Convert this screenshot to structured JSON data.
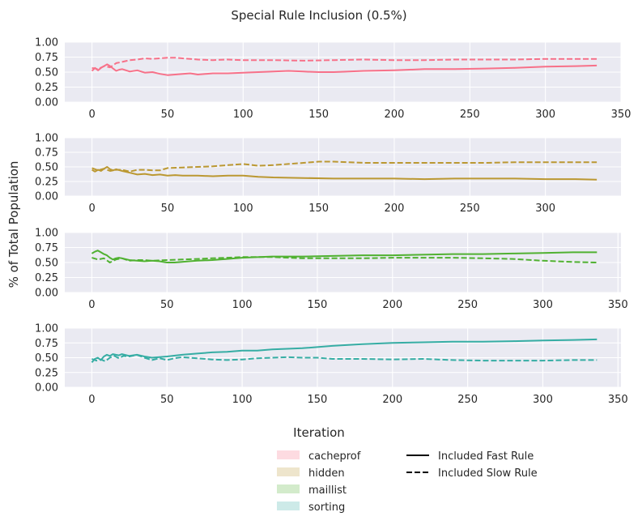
{
  "figure": {
    "title": "Special Rule Inclusion (0.5%)",
    "ylabel": "% of Total Population",
    "xlabel": "Iteration"
  },
  "legend": {
    "benchmarks": [
      {
        "label": "cacheprof",
        "color": "#f77189"
      },
      {
        "label": "hidden",
        "color": "#bb9832"
      },
      {
        "label": "maillist",
        "color": "#50b131"
      },
      {
        "label": "sorting",
        "color": "#36ada4"
      }
    ],
    "styles": [
      {
        "label": "Included Fast Rule",
        "dash": "solid"
      },
      {
        "label": "Included Slow Rule",
        "dash": "dashed"
      }
    ]
  },
  "chart_data": [
    {
      "type": "line",
      "name": "cacheprof",
      "color": "#f77189",
      "xlim": [
        -18,
        350
      ],
      "ylim": [
        0,
        1
      ],
      "xticks": [
        0,
        50,
        100,
        150,
        200,
        250,
        300,
        350
      ],
      "yticks": [
        0.0,
        0.25,
        0.5,
        0.75,
        1.0
      ],
      "grid": true,
      "series": [
        {
          "name": "Included Fast Rule",
          "dash": "solid",
          "x": [
            0,
            2,
            4,
            6,
            8,
            10,
            12,
            14,
            16,
            18,
            20,
            25,
            30,
            35,
            40,
            45,
            50,
            55,
            60,
            65,
            70,
            80,
            90,
            100,
            110,
            120,
            130,
            140,
            150,
            160,
            170,
            180,
            200,
            220,
            240,
            260,
            280,
            300,
            320,
            334
          ],
          "y": [
            0.52,
            0.57,
            0.53,
            0.57,
            0.6,
            0.63,
            0.6,
            0.56,
            0.52,
            0.54,
            0.55,
            0.51,
            0.53,
            0.49,
            0.5,
            0.47,
            0.45,
            0.46,
            0.47,
            0.48,
            0.46,
            0.48,
            0.48,
            0.49,
            0.5,
            0.51,
            0.52,
            0.51,
            0.5,
            0.5,
            0.51,
            0.52,
            0.53,
            0.55,
            0.55,
            0.56,
            0.57,
            0.59,
            0.6,
            0.61
          ]
        },
        {
          "name": "Included Slow Rule",
          "dash": "dashed",
          "x": [
            0,
            4,
            8,
            12,
            16,
            20,
            25,
            30,
            35,
            40,
            45,
            50,
            55,
            60,
            70,
            80,
            90,
            100,
            120,
            140,
            160,
            180,
            200,
            220,
            240,
            260,
            280,
            300,
            320,
            334
          ],
          "y": [
            0.57,
            0.55,
            0.6,
            0.58,
            0.65,
            0.67,
            0.7,
            0.71,
            0.73,
            0.72,
            0.73,
            0.74,
            0.74,
            0.73,
            0.71,
            0.7,
            0.71,
            0.7,
            0.7,
            0.69,
            0.7,
            0.71,
            0.7,
            0.7,
            0.71,
            0.71,
            0.71,
            0.72,
            0.72,
            0.72
          ]
        }
      ]
    },
    {
      "type": "line",
      "name": "hidden",
      "color": "#bb9832",
      "xlim": [
        -18,
        350
      ],
      "ylim": [
        0,
        1
      ],
      "xticks": [
        0,
        50,
        100,
        150,
        200,
        250,
        300
      ],
      "yticks": [
        0.0,
        0.25,
        0.5,
        0.75,
        1.0
      ],
      "grid": true,
      "series": [
        {
          "name": "Included Fast Rule",
          "dash": "solid",
          "x": [
            0,
            2,
            4,
            6,
            8,
            10,
            12,
            14,
            16,
            20,
            25,
            30,
            35,
            40,
            45,
            50,
            55,
            60,
            70,
            80,
            90,
            100,
            110,
            120,
            140,
            160,
            180,
            200,
            220,
            240,
            260,
            280,
            300,
            320,
            334
          ],
          "y": [
            0.45,
            0.42,
            0.45,
            0.43,
            0.47,
            0.5,
            0.46,
            0.44,
            0.46,
            0.43,
            0.4,
            0.37,
            0.38,
            0.36,
            0.37,
            0.35,
            0.36,
            0.35,
            0.35,
            0.34,
            0.35,
            0.35,
            0.33,
            0.32,
            0.31,
            0.3,
            0.3,
            0.3,
            0.29,
            0.3,
            0.3,
            0.3,
            0.29,
            0.29,
            0.28
          ]
        },
        {
          "name": "Included Slow Rule",
          "dash": "dashed",
          "x": [
            0,
            4,
            8,
            12,
            16,
            20,
            25,
            30,
            35,
            40,
            45,
            50,
            60,
            70,
            80,
            90,
            100,
            110,
            120,
            140,
            150,
            160,
            180,
            200,
            220,
            240,
            260,
            280,
            300,
            320,
            334
          ],
          "y": [
            0.48,
            0.44,
            0.47,
            0.43,
            0.45,
            0.45,
            0.42,
            0.45,
            0.45,
            0.44,
            0.44,
            0.48,
            0.49,
            0.5,
            0.51,
            0.53,
            0.55,
            0.52,
            0.53,
            0.57,
            0.59,
            0.59,
            0.57,
            0.57,
            0.57,
            0.57,
            0.57,
            0.58,
            0.58,
            0.58,
            0.58
          ]
        }
      ]
    },
    {
      "type": "line",
      "name": "maillist",
      "color": "#50b131",
      "xlim": [
        -18,
        352
      ],
      "ylim": [
        0,
        1
      ],
      "xticks": [
        0,
        50,
        100,
        150,
        200,
        250,
        300,
        350
      ],
      "yticks": [
        0.0,
        0.25,
        0.5,
        0.75,
        1.0
      ],
      "grid": true,
      "series": [
        {
          "name": "Included Fast Rule",
          "dash": "solid",
          "x": [
            0,
            2,
            4,
            6,
            8,
            10,
            12,
            14,
            16,
            18,
            20,
            25,
            30,
            35,
            40,
            45,
            50,
            55,
            60,
            70,
            80,
            90,
            100,
            120,
            140,
            160,
            180,
            200,
            220,
            240,
            260,
            280,
            300,
            320,
            336
          ],
          "y": [
            0.65,
            0.68,
            0.7,
            0.67,
            0.64,
            0.62,
            0.58,
            0.55,
            0.57,
            0.58,
            0.57,
            0.54,
            0.53,
            0.52,
            0.53,
            0.52,
            0.5,
            0.5,
            0.51,
            0.53,
            0.54,
            0.56,
            0.58,
            0.6,
            0.6,
            0.61,
            0.62,
            0.62,
            0.63,
            0.64,
            0.64,
            0.65,
            0.66,
            0.67,
            0.67
          ]
        },
        {
          "name": "Included Slow Rule",
          "dash": "dashed",
          "x": [
            0,
            4,
            8,
            12,
            16,
            20,
            25,
            30,
            35,
            40,
            50,
            60,
            70,
            80,
            90,
            100,
            120,
            140,
            160,
            180,
            200,
            220,
            240,
            260,
            280,
            300,
            320,
            336
          ],
          "y": [
            0.58,
            0.55,
            0.57,
            0.5,
            0.55,
            0.57,
            0.53,
            0.54,
            0.54,
            0.53,
            0.54,
            0.55,
            0.56,
            0.57,
            0.58,
            0.59,
            0.59,
            0.57,
            0.57,
            0.57,
            0.58,
            0.58,
            0.58,
            0.57,
            0.56,
            0.53,
            0.51,
            0.5
          ]
        }
      ]
    },
    {
      "type": "line",
      "name": "sorting",
      "color": "#36ada4",
      "xlim": [
        -18,
        352
      ],
      "ylim": [
        0,
        1
      ],
      "xticks": [
        0,
        50,
        100,
        150,
        200,
        250,
        300,
        350
      ],
      "yticks": [
        0.0,
        0.25,
        0.5,
        0.75,
        1.0
      ],
      "grid": true,
      "series": [
        {
          "name": "Included Fast Rule",
          "dash": "solid",
          "x": [
            0,
            2,
            4,
            6,
            8,
            10,
            12,
            14,
            16,
            18,
            20,
            25,
            30,
            35,
            40,
            45,
            50,
            60,
            70,
            80,
            90,
            100,
            110,
            120,
            140,
            160,
            180,
            200,
            220,
            240,
            260,
            280,
            300,
            320,
            336
          ],
          "y": [
            0.42,
            0.48,
            0.5,
            0.46,
            0.52,
            0.55,
            0.53,
            0.56,
            0.55,
            0.54,
            0.56,
            0.53,
            0.55,
            0.52,
            0.5,
            0.51,
            0.52,
            0.55,
            0.57,
            0.59,
            0.6,
            0.62,
            0.62,
            0.64,
            0.66,
            0.7,
            0.73,
            0.75,
            0.76,
            0.77,
            0.77,
            0.78,
            0.79,
            0.8,
            0.81
          ]
        },
        {
          "name": "Included Slow Rule",
          "dash": "dashed",
          "x": [
            0,
            3,
            6,
            9,
            12,
            15,
            18,
            21,
            25,
            30,
            35,
            40,
            45,
            50,
            55,
            60,
            70,
            80,
            90,
            100,
            110,
            120,
            130,
            140,
            150,
            160,
            180,
            200,
            220,
            240,
            260,
            280,
            300,
            320,
            336
          ],
          "y": [
            0.48,
            0.45,
            0.47,
            0.44,
            0.5,
            0.53,
            0.49,
            0.53,
            0.52,
            0.55,
            0.5,
            0.46,
            0.49,
            0.46,
            0.49,
            0.51,
            0.49,
            0.47,
            0.46,
            0.47,
            0.49,
            0.5,
            0.51,
            0.5,
            0.5,
            0.48,
            0.48,
            0.47,
            0.48,
            0.46,
            0.45,
            0.45,
            0.45,
            0.46,
            0.46
          ]
        }
      ]
    }
  ]
}
